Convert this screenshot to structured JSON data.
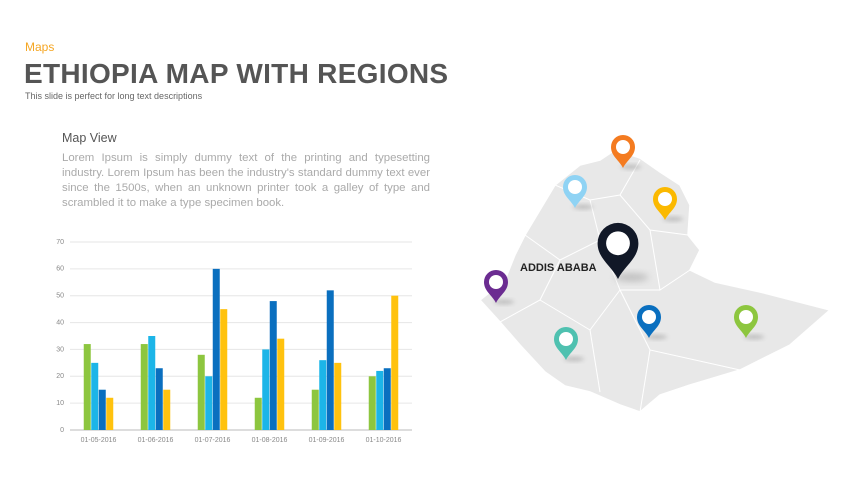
{
  "header": {
    "kicker": "Maps",
    "title": "ETHIOPIA MAP WITH REGIONS",
    "subtitle": "This slide is perfect for long text descriptions"
  },
  "section": {
    "heading": "Map View",
    "body": "Lorem Ipsum is simply dummy text of the printing and typesetting industry. Lorem Ipsum has been the industry's standard dummy text ever since the 1500s, when an unknown printer took a galley of type and scrambled it to make a type specimen book."
  },
  "map": {
    "label": "ADDIS ABABA"
  },
  "chart_data": {
    "type": "bar",
    "categories": [
      "01-05-2016",
      "01-06-2016",
      "01-07-2016",
      "01-08-2016",
      "01-09-2016",
      "01-10-2016"
    ],
    "series": [
      {
        "color": "#8dc63f",
        "values": [
          32,
          32,
          28,
          12,
          15,
          20
        ]
      },
      {
        "color": "#1cb5e8",
        "values": [
          25,
          35,
          20,
          30,
          26,
          22
        ]
      },
      {
        "color": "#0a6fbf",
        "values": [
          15,
          23,
          60,
          48,
          52,
          23
        ]
      },
      {
        "color": "#ffc20e",
        "values": [
          12,
          15,
          45,
          34,
          25,
          50
        ]
      }
    ],
    "ylim": [
      0,
      70
    ],
    "yticks": [
      0,
      10,
      20,
      30,
      40,
      50,
      60,
      70
    ],
    "grid": true
  }
}
